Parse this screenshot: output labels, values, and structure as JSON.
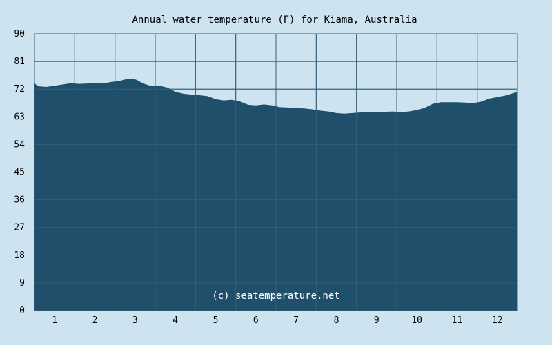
{
  "chart_data": {
    "type": "area",
    "title": "Annual water temperature (F) for Kiama, Australia",
    "xlabel": "",
    "ylabel": "",
    "ylim": [
      0,
      90
    ],
    "yticks": [
      "0",
      "9",
      "18",
      "27",
      "36",
      "45",
      "54",
      "63",
      "72",
      "81",
      "90"
    ],
    "xticks": [
      "1",
      "2",
      "3",
      "4",
      "5",
      "6",
      "7",
      "8",
      "9",
      "10",
      "11",
      "12"
    ],
    "xlim": [
      0.5,
      12.5
    ],
    "grid": true,
    "watermark": "(c) seatemperature.net",
    "x": [
      0.5,
      0.6,
      0.8,
      1.0,
      1.2,
      1.4,
      1.6,
      1.8,
      2.0,
      2.2,
      2.4,
      2.6,
      2.8,
      2.95,
      3.05,
      3.2,
      3.4,
      3.6,
      3.8,
      4.0,
      4.2,
      4.4,
      4.6,
      4.8,
      5.0,
      5.2,
      5.4,
      5.6,
      5.8,
      6.0,
      6.2,
      6.4,
      6.6,
      6.8,
      7.0,
      7.2,
      7.4,
      7.6,
      7.8,
      8.0,
      8.2,
      8.4,
      8.6,
      8.8,
      9.0,
      9.2,
      9.4,
      9.6,
      9.8,
      10.0,
      10.2,
      10.4,
      10.6,
      10.8,
      11.0,
      11.2,
      11.4,
      11.6,
      11.8,
      12.0,
      12.2,
      12.4,
      12.5
    ],
    "values": [
      73.7,
      72.8,
      72.6,
      73.0,
      73.4,
      73.8,
      73.6,
      73.7,
      73.8,
      73.7,
      74.2,
      74.5,
      75.2,
      75.3,
      74.8,
      73.7,
      72.9,
      73.0,
      72.4,
      71.0,
      70.4,
      70.1,
      69.9,
      69.6,
      68.6,
      68.2,
      68.4,
      67.9,
      66.8,
      66.6,
      66.9,
      66.6,
      66.0,
      65.9,
      65.7,
      65.6,
      65.3,
      64.9,
      64.6,
      64.1,
      63.9,
      64.1,
      64.3,
      64.3,
      64.4,
      64.5,
      64.6,
      64.4,
      64.6,
      65.1,
      65.8,
      67.1,
      67.6,
      67.6,
      67.6,
      67.5,
      67.3,
      67.8,
      68.8,
      69.3,
      69.8,
      70.6,
      71.0
    ],
    "colors": {
      "background": "#cde3f0",
      "area": "#1f4f6b",
      "grid": "#36607a",
      "plot_border": "#36607a"
    }
  }
}
